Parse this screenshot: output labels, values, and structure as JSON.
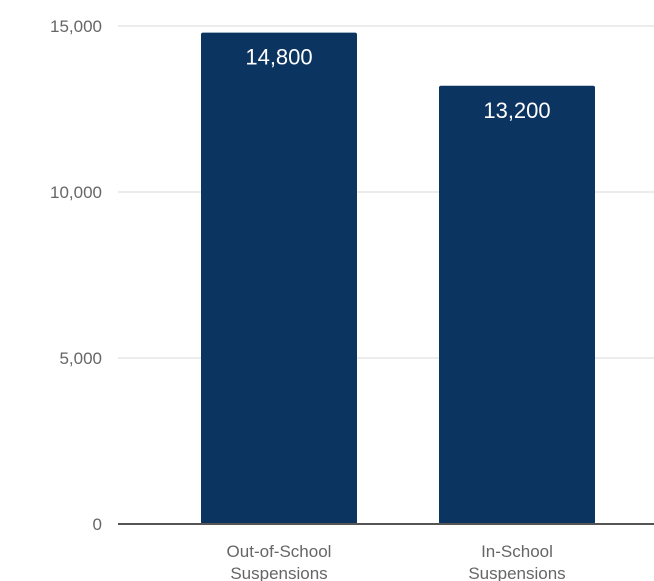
{
  "chart_data": {
    "type": "bar",
    "categories": [
      [
        "Out-of-School",
        "Suspensions"
      ],
      [
        "In-School",
        "Suspensions"
      ]
    ],
    "values": [
      14800,
      13200
    ],
    "value_labels": [
      "14,800",
      "13,200"
    ],
    "ylim": [
      0,
      15000
    ],
    "yticks": [
      0,
      5000,
      10000,
      15000
    ],
    "ytick_labels": [
      "0",
      "5,000",
      "10,000",
      "15,000"
    ],
    "grid": true,
    "legend": "none",
    "colors": {
      "bar": "#0b3461",
      "grid": "#e6e6e6",
      "axis": "#555555",
      "text": "#666666",
      "data_label": "#ffffff"
    }
  }
}
